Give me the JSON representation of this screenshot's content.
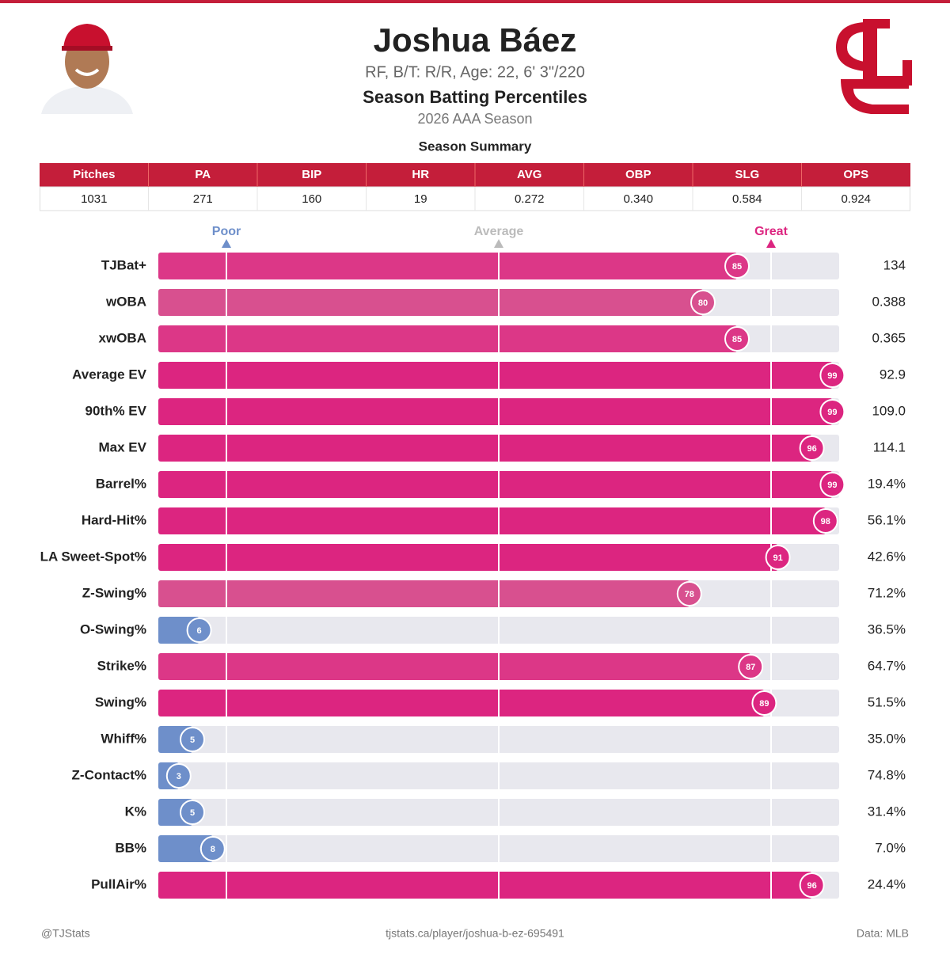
{
  "header": {
    "name": "Joshua Báez",
    "bio": "RF, B/T: R/R, Age: 22, 6' 3\"/220",
    "subtitle": "Season Batting Percentiles",
    "season": "2026 AAA Season"
  },
  "summary": {
    "title": "Season Summary",
    "columns": [
      "Pitches",
      "PA",
      "BIP",
      "HR",
      "AVG",
      "OBP",
      "SLG",
      "OPS"
    ],
    "row": [
      "1031",
      "271",
      "160",
      "19",
      "0.272",
      "0.340",
      "0.584",
      "0.924"
    ]
  },
  "chart_data": {
    "type": "bar",
    "orientation": "horizontal",
    "categories": [
      "TJBat+",
      "wOBA",
      "xwOBA",
      "Average EV",
      "90th% EV",
      "Max EV",
      "Barrel%",
      "Hard-Hit%",
      "LA Sweet-Spot%",
      "Z-Swing%",
      "O-Swing%",
      "Strike%",
      "Swing%",
      "Whiff%",
      "Z-Contact%",
      "K%",
      "BB%",
      "PullAir%"
    ],
    "values": [
      85,
      80,
      85,
      99,
      99,
      96,
      99,
      98,
      91,
      78,
      6,
      87,
      89,
      5,
      3,
      5,
      8,
      96
    ],
    "colors": [
      "#dc3787",
      "#d8508f",
      "#dc3787",
      "#dc2580",
      "#dc2580",
      "#dc2580",
      "#dc2580",
      "#dc2580",
      "#dc2580",
      "#d8508f",
      "#6e8fca",
      "#dc3787",
      "#dc2580",
      "#6e8fca",
      "#6e8fca",
      "#6e8fca",
      "#6e8fca",
      "#dc2580"
    ],
    "stat_labels": [
      "134",
      "0.388",
      "0.365",
      "92.9",
      "109.0",
      "114.1",
      "19.4%",
      "56.1%",
      "42.6%",
      "71.2%",
      "36.5%",
      "64.7%",
      "51.5%",
      "35.0%",
      "74.8%",
      "31.4%",
      "7.0%",
      "24.4%"
    ],
    "xlim": [
      0,
      100
    ],
    "xticks": [
      {
        "value": 10,
        "label": "Poor"
      },
      {
        "value": 50,
        "label": "Average"
      },
      {
        "value": 90,
        "label": "Great"
      }
    ],
    "tick_colors": [
      "#6e8fca",
      "#bbbbbb",
      "#dc2580"
    ],
    "track_color": "#e8e8ee",
    "grid": true
  },
  "footer": {
    "left": "@TJStats",
    "center": "tjstats.ca/player/joshua-b-ez-695491",
    "right": "Data: MLB"
  }
}
